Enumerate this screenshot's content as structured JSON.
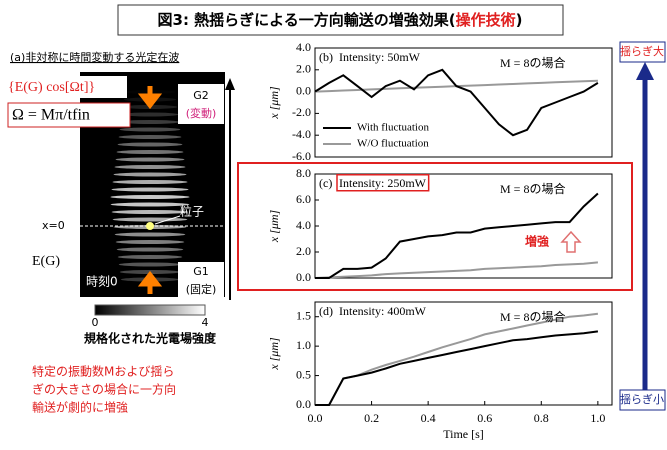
{
  "header": {
    "title": "図3: 熱揺らぎによる一方向輸送の増強効果(",
    "title_highlight": "操作技術",
    "title_end": ")"
  },
  "left_panel": {
    "caption": "(a)非対称に時間変動する光定在波",
    "formula_field": "{E(G) cos[Ωt]}",
    "formula_omega": "Ω = Mπ/tfin",
    "g2": "G2",
    "g2_note": "(変動)",
    "x0": "x=0",
    "particle": "粒子",
    "field": "E(G)",
    "time0": "時刻0",
    "g1": "G1",
    "g1_note": "(固定)",
    "colorbar_min": "0",
    "colorbar_max": "4",
    "colorbar_label": "規格化された光電場強度",
    "conclusion": [
      "特定の振動数Mおよび揺ら",
      "ぎの大きさの場合に一方向",
      "輸送が劇的に増強"
    ]
  },
  "side": {
    "top": "揺らぎ大",
    "bottom": "揺らぎ小"
  },
  "chart_data": [
    {
      "type": "line",
      "label": "(b)",
      "intensity": "Intensity: 50mW",
      "note": "M = 8の場合",
      "ylabel": "x [μm]",
      "x": [
        0,
        0.05,
        0.1,
        0.15,
        0.2,
        0.25,
        0.3,
        0.35,
        0.4,
        0.45,
        0.5,
        0.55,
        0.6,
        0.65,
        0.7,
        0.75,
        0.8,
        0.85,
        0.9,
        0.95,
        1.0
      ],
      "xlim": [
        0,
        1.05
      ],
      "ylim": [
        -6,
        4
      ],
      "yticks": [
        {
          "value": -6,
          "label": "-6.0"
        },
        {
          "value": -4,
          "label": "-4.0"
        },
        {
          "value": -2,
          "label": "-2.0"
        },
        {
          "value": 0,
          "label": "0.0"
        },
        {
          "value": 2,
          "label": "2.0"
        },
        {
          "value": 4,
          "label": "4.0"
        }
      ],
      "series": [
        {
          "name": "With fluctuation",
          "color": "#000000",
          "values": [
            0,
            0.8,
            1.5,
            0.5,
            -0.5,
            0.5,
            1.0,
            0.2,
            1.5,
            2.0,
            0.5,
            0,
            -1.5,
            -3.0,
            -4.0,
            -3.5,
            -1.5,
            -1.0,
            -0.5,
            0,
            0.8
          ]
        },
        {
          "name": "W/O fluctuation",
          "color": "#999999",
          "values": [
            0,
            0.05,
            0.1,
            0.15,
            0.2,
            0.25,
            0.3,
            0.35,
            0.4,
            0.45,
            0.5,
            0.55,
            0.6,
            0.65,
            0.7,
            0.75,
            0.8,
            0.85,
            0.9,
            0.95,
            1.0
          ]
        }
      ]
    },
    {
      "type": "line",
      "label": "(c)",
      "intensity": "Intensity: 250mW",
      "note": "M = 8の場合",
      "ylabel": "x [μm]",
      "annotation": "増強",
      "x": [
        0,
        0.05,
        0.1,
        0.15,
        0.2,
        0.25,
        0.3,
        0.35,
        0.4,
        0.45,
        0.5,
        0.55,
        0.6,
        0.65,
        0.7,
        0.75,
        0.8,
        0.85,
        0.9,
        0.95,
        1.0
      ],
      "xlim": [
        0,
        1.05
      ],
      "ylim": [
        0,
        8
      ],
      "yticks": [
        {
          "value": 0,
          "label": "0.0"
        },
        {
          "value": 2,
          "label": "2.0"
        },
        {
          "value": 4,
          "label": "4.0"
        },
        {
          "value": 6,
          "label": "6.0"
        },
        {
          "value": 8,
          "label": "8.0"
        }
      ],
      "series": [
        {
          "color": "#000000",
          "values": [
            0,
            0,
            0.7,
            0.7,
            0.8,
            1.5,
            2.8,
            3.0,
            3.2,
            3.3,
            3.5,
            3.5,
            3.8,
            3.9,
            4.0,
            4.1,
            4.2,
            4.3,
            4.3,
            5.5,
            6.5
          ]
        },
        {
          "color": "#999999",
          "values": [
            0,
            0.05,
            0.1,
            0.15,
            0.2,
            0.3,
            0.35,
            0.4,
            0.45,
            0.5,
            0.55,
            0.6,
            0.7,
            0.75,
            0.8,
            0.85,
            0.9,
            1.0,
            1.05,
            1.1,
            1.2
          ]
        }
      ]
    },
    {
      "type": "line",
      "label": "(d)",
      "intensity": "Intensity: 400mW",
      "note": "M = 8の場合",
      "ylabel": "x [μm]",
      "xlabel": "Time [s]",
      "x": [
        0,
        0.05,
        0.1,
        0.15,
        0.2,
        0.25,
        0.3,
        0.35,
        0.4,
        0.45,
        0.5,
        0.55,
        0.6,
        0.65,
        0.7,
        0.75,
        0.8,
        0.85,
        0.9,
        0.95,
        1.0
      ],
      "xlim": [
        0,
        1.05
      ],
      "ylim": [
        0,
        1.75
      ],
      "xticks": [
        {
          "value": 0,
          "label": "0.0"
        },
        0.2,
        0.4,
        0.6,
        0.8,
        {
          "value": 1,
          "label": "1.0"
        }
      ],
      "yticks": [
        {
          "value": 0,
          "label": "0.0"
        },
        0.5,
        {
          "value": 1,
          "label": "1.0"
        },
        1.5
      ],
      "series": [
        {
          "color": "#000000",
          "values": [
            0,
            0,
            0.45,
            0.5,
            0.55,
            0.62,
            0.7,
            0.75,
            0.8,
            0.85,
            0.9,
            0.95,
            1.0,
            1.05,
            1.1,
            1.12,
            1.15,
            1.18,
            1.2,
            1.22,
            1.25
          ]
        },
        {
          "color": "#999999",
          "values": [
            0,
            0,
            0.45,
            0.5,
            0.6,
            0.68,
            0.75,
            0.82,
            0.9,
            0.98,
            1.05,
            1.12,
            1.2,
            1.25,
            1.3,
            1.35,
            1.4,
            1.45,
            1.5,
            1.52,
            1.55
          ]
        }
      ]
    }
  ]
}
